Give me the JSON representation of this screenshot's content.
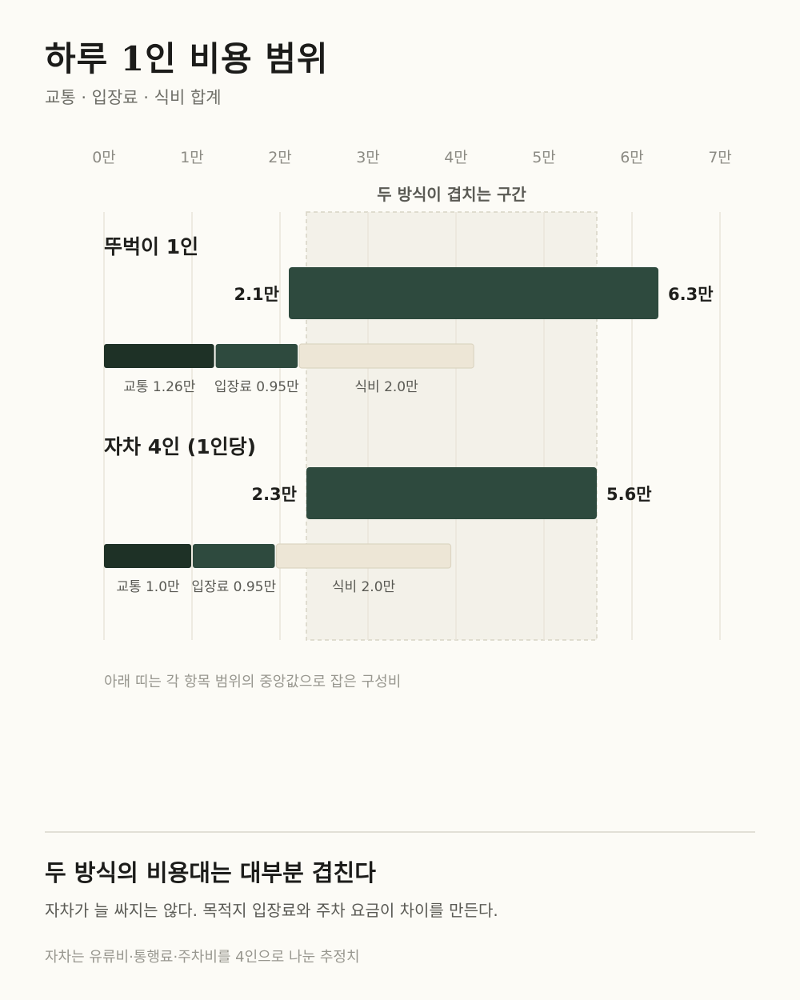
{
  "title": "하루 1인 비용 범위",
  "subtitle": "교통 · 입장료 · 식비 합계",
  "chart_data": {
    "type": "bar",
    "orientation": "horizontal-range",
    "unit": "만",
    "xlim": [
      0,
      7
    ],
    "ticks": [
      0,
      1,
      2,
      3,
      4,
      5,
      6,
      7
    ],
    "tick_labels": [
      "0만",
      "1만",
      "2만",
      "3만",
      "4만",
      "5만",
      "6만",
      "7만"
    ],
    "grid": true,
    "overlap": {
      "label": "두 방식이 겹치는 구간",
      "range": [
        2.3,
        5.6
      ]
    },
    "series": [
      {
        "name": "뚜벅이 1인",
        "range": [
          2.1,
          6.3
        ],
        "range_labels": [
          "2.1만",
          "6.3만"
        ],
        "components": [
          {
            "label": "교통 1.26만",
            "value": 1.26
          },
          {
            "label": "입장료 0.95만",
            "value": 0.95
          },
          {
            "label": "식비 2.0만",
            "value": 2.0
          }
        ]
      },
      {
        "name": "자차 4인 (1인당)",
        "range": [
          2.3,
          5.6
        ],
        "range_labels": [
          "2.3만",
          "5.6만"
        ],
        "components": [
          {
            "label": "교통 1.0만",
            "value": 1.0
          },
          {
            "label": "입장료 0.95만",
            "value": 0.95
          },
          {
            "label": "식비 2.0만",
            "value": 2.0
          }
        ]
      }
    ],
    "colors": {
      "range_bar": "#2e4a3e",
      "transport": "#1e3126",
      "admission": "#2e4a3e",
      "food": "#ede6d6",
      "grid": "#e9e6da",
      "overlap_fill": "#f3f1e9",
      "overlap_border": "#d8d4c6"
    }
  },
  "footnote": "아래 띠는 각 항목 범위의 중앙값으로 잡은 구성비",
  "conclusion": {
    "title": "두 방식의 비용대는 대부분 겹친다",
    "body": "자차가 늘 싸지는 않다. 목적지 입장료와 주차 요금이 차이를 만든다.",
    "note": "자차는 유류비·통행료·주차비를 4인으로 나눈 추정치"
  }
}
